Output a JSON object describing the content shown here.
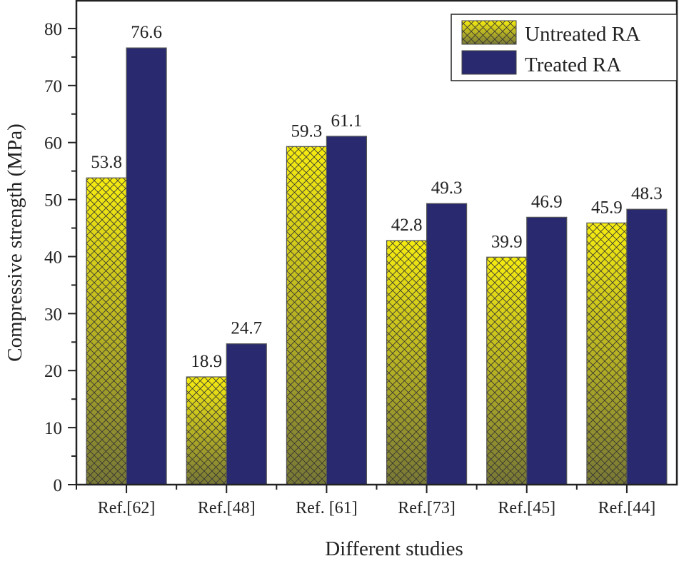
{
  "chart_data": {
    "type": "bar",
    "title": "",
    "xlabel": "Different studies",
    "ylabel": "Compressive strength (MPa)",
    "categories": [
      "Ref.[62]",
      "Ref.[48]",
      "Ref. [61]",
      "Ref.[73]",
      "Ref.[45]",
      "Ref.[44]"
    ],
    "series": [
      {
        "name": "Untreated RA",
        "values": [
          53.8,
          18.9,
          59.3,
          42.8,
          39.9,
          45.9
        ],
        "color_top": "#f6ec10",
        "color_bottom": "#787836",
        "pattern": "crosshatch"
      },
      {
        "name": "Treated RA",
        "values": [
          76.6,
          24.7,
          61.1,
          49.3,
          46.9,
          48.3
        ],
        "color": "#28296e"
      }
    ],
    "data_labels": [
      [
        "53.8",
        "18.9",
        "59.3",
        "42.8",
        "39.9",
        "45.9"
      ],
      [
        "76.6",
        "24.7",
        "61.1",
        "49.3",
        "46.9",
        "48.3"
      ]
    ],
    "ylim": [
      0,
      85
    ],
    "yticks": [
      "0",
      "10",
      "20",
      "30",
      "40",
      "50",
      "60",
      "70",
      "80"
    ],
    "grid": false,
    "legend_position": "top-right"
  }
}
